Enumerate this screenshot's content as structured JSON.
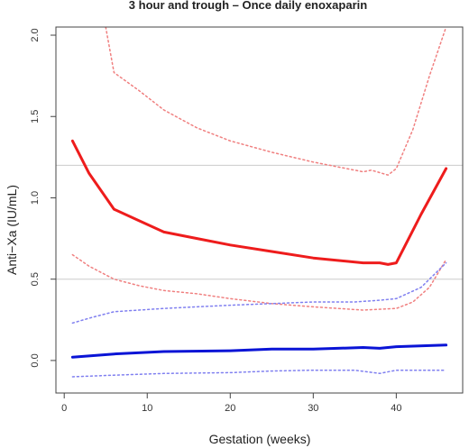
{
  "chart_data": {
    "type": "line",
    "title": "3 hour and trough – Once daily enoxaparin",
    "xlabel": "Gestation (weeks)",
    "ylabel": "Anti−Xa (IU/mL)",
    "xlim": [
      -1,
      48
    ],
    "ylim": [
      -0.2,
      2.05
    ],
    "xticks": [
      0,
      10,
      20,
      30,
      40
    ],
    "yticks": [
      0.0,
      0.5,
      1.0,
      1.5,
      2.0
    ],
    "xtick_labels": [
      "0",
      "10",
      "20",
      "30",
      "40"
    ],
    "ytick_labels": [
      "0.0",
      "0.5",
      "1.0",
      "1.5",
      "2.0"
    ],
    "reference_lines": [
      {
        "y": 1.2,
        "color": "#cccccc"
      },
      {
        "y": 0.5,
        "color": "#cccccc"
      }
    ],
    "series": [
      {
        "color": "#ee1c1c",
        "style": "solid",
        "width": 3,
        "x": [
          1,
          3,
          6,
          9,
          12,
          16,
          20,
          25,
          30,
          36,
          38,
          39,
          40,
          41,
          43,
          46
        ],
        "y": [
          1.35,
          1.15,
          0.93,
          0.86,
          0.79,
          0.75,
          0.71,
          0.67,
          0.63,
          0.6,
          0.6,
          0.59,
          0.6,
          0.7,
          0.9,
          1.18
        ]
      },
      {
        "color": "#f08080",
        "style": "dotted",
        "width": 1.5,
        "x": [
          5,
          6,
          9,
          12,
          16,
          20,
          25,
          30,
          36,
          37,
          39,
          40,
          42,
          44,
          46
        ],
        "y": [
          2.05,
          1.77,
          1.66,
          1.54,
          1.43,
          1.35,
          1.28,
          1.22,
          1.16,
          1.17,
          1.14,
          1.18,
          1.42,
          1.75,
          2.05
        ]
      },
      {
        "color": "#f08080",
        "style": "dotted",
        "width": 1.5,
        "x": [
          1,
          3,
          6,
          9,
          12,
          16,
          20,
          25,
          30,
          36,
          40,
          42,
          44,
          46
        ],
        "y": [
          0.65,
          0.58,
          0.5,
          0.46,
          0.43,
          0.41,
          0.38,
          0.35,
          0.33,
          0.31,
          0.32,
          0.36,
          0.45,
          0.62
        ]
      },
      {
        "color": "#0a14d6",
        "style": "solid",
        "width": 3,
        "x": [
          1,
          6,
          12,
          20,
          25,
          30,
          36,
          38,
          40,
          46
        ],
        "y": [
          0.02,
          0.04,
          0.055,
          0.06,
          0.07,
          0.07,
          0.08,
          0.075,
          0.085,
          0.095
        ]
      },
      {
        "color": "#8080f0",
        "style": "dotted",
        "width": 1.5,
        "x": [
          1,
          3,
          6,
          12,
          20,
          25,
          30,
          35,
          38,
          40,
          43,
          46
        ],
        "y": [
          0.23,
          0.26,
          0.3,
          0.32,
          0.34,
          0.35,
          0.36,
          0.36,
          0.37,
          0.38,
          0.45,
          0.6
        ]
      },
      {
        "color": "#8080f0",
        "style": "dotted",
        "width": 1.5,
        "x": [
          1,
          6,
          12,
          20,
          25,
          30,
          35,
          38,
          40,
          46
        ],
        "y": [
          -0.1,
          -0.09,
          -0.08,
          -0.075,
          -0.065,
          -0.06,
          -0.06,
          -0.08,
          -0.06,
          -0.06
        ]
      }
    ]
  }
}
